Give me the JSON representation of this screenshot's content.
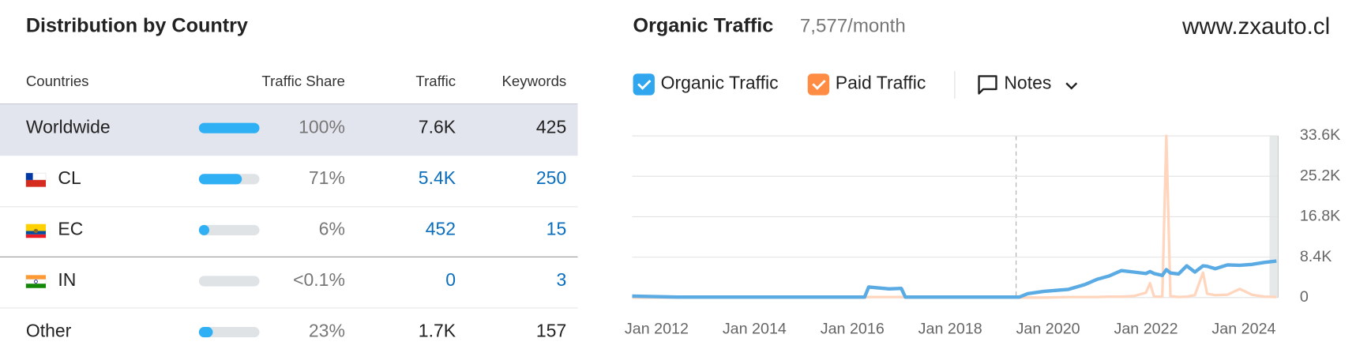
{
  "panel_title": "Distribution by Country",
  "table": {
    "columns": [
      "Countries",
      "Traffic Share",
      "Traffic",
      "Keywords"
    ],
    "rows": [
      {
        "country": "Worldwide",
        "share": {
          "value": 100,
          "label": "100%"
        },
        "traffic": "7.6K",
        "keywords": 425
      },
      {
        "country": "CL",
        "share": {
          "value": 71,
          "label": "71%"
        },
        "traffic": "5.4K",
        "keywords": 250
      },
      {
        "country": "EC",
        "share": {
          "value": 6,
          "label": "6%"
        },
        "traffic": 452,
        "keywords": 15
      },
      {
        "country": "IN",
        "share": {
          "value": 0,
          "label": "<0.1%"
        },
        "traffic": 0,
        "keywords": 3
      },
      {
        "country": "Other",
        "share": {
          "value": 23,
          "label": "23%"
        },
        "traffic": "1.7K",
        "keywords": 157
      }
    ]
  },
  "domain": "www.zxauto.cl",
  "notes_label": "Notes",
  "chart_data": {
    "type": "line",
    "title": "Organic Traffic",
    "subtitle": "7,577/month",
    "x": [
      "2011-07",
      "2012-06",
      "2014-01",
      "2016-04",
      "2016-05",
      "2016-10",
      "2017-01",
      "2017-02",
      "2019-06",
      "2019-08",
      "2019-12",
      "2020-06",
      "2020-10",
      "2021-01",
      "2021-04",
      "2021-07",
      "2021-10",
      "2022-01",
      "2022-02",
      "2022-03",
      "2022-05",
      "2022-06",
      "2022-07",
      "2022-09",
      "2022-11",
      "2023-01",
      "2023-03",
      "2023-04",
      "2023-06",
      "2023-09",
      "2023-12",
      "2024-03",
      "2024-06",
      "2024-09"
    ],
    "series": [
      {
        "name": "Paid Traffic",
        "color": "#ffd5bd",
        "legend_color": "#ff8c42",
        "values": [
          0,
          0,
          0,
          0,
          100,
          100,
          100,
          0,
          0,
          0,
          0,
          100,
          100,
          100,
          200,
          200,
          300,
          1000,
          3000,
          200,
          200,
          33600,
          300,
          100,
          200,
          500,
          5200,
          800,
          500,
          600,
          1800,
          600,
          200,
          100
        ]
      },
      {
        "name": "Organic Traffic",
        "color": "#5aaae3",
        "legend_color": "#2fa6ed",
        "values": [
          300,
          100,
          100,
          100,
          2200,
          1800,
          1900,
          100,
          100,
          800,
          1300,
          1700,
          2700,
          3800,
          4500,
          5600,
          5300,
          5000,
          5400,
          5000,
          4600,
          5800,
          5100,
          4900,
          6600,
          5300,
          6600,
          6500,
          6000,
          6800,
          6700,
          6900,
          7300,
          7577
        ]
      }
    ],
    "xlim": [
      "2011-07",
      "2024-09"
    ],
    "xticks": [
      {
        "value": "2012-01",
        "label": "Jan 2012"
      },
      {
        "value": "2014-01",
        "label": "Jan 2014"
      },
      {
        "value": "2016-01",
        "label": "Jan 2016"
      },
      {
        "value": "2018-01",
        "label": "Jan 2018"
      },
      {
        "value": "2020-01",
        "label": "Jan 2020"
      },
      {
        "value": "2022-01",
        "label": "Jan 2022"
      },
      {
        "value": "2024-01",
        "label": "Jan 2024"
      }
    ],
    "ylim": [
      0,
      33600
    ],
    "yticks": [
      0,
      {
        "value": 8400,
        "label": "8.4K"
      },
      {
        "value": 16800,
        "label": "16.8K"
      },
      {
        "value": 25200,
        "label": "25.2K"
      },
      {
        "value": 33600,
        "label": "33.6K"
      }
    ],
    "grid": true
  }
}
